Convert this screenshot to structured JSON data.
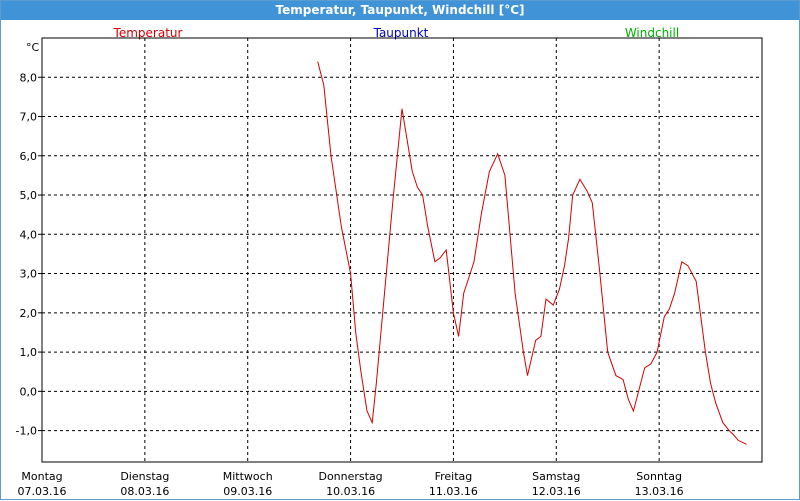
{
  "window": {
    "title": "Temperatur, Taupunkt, Windchill [°C]"
  },
  "chart_data": {
    "type": "line",
    "title": "Temperatur, Taupunkt, Windchill [°C]",
    "ylabel": "°C",
    "ylim": [
      -1.8,
      9.0
    ],
    "yticks": [
      -1.0,
      0.0,
      1.0,
      2.0,
      3.0,
      4.0,
      5.0,
      6.0,
      7.0,
      8.0
    ],
    "ytick_labels": [
      "-1,0",
      "0,0",
      "1,0",
      "2,0",
      "3,0",
      "4,0",
      "5,0",
      "6,0",
      "7,0",
      "8,0"
    ],
    "xlim": [
      0,
      7
    ],
    "xaxis_days": [
      {
        "day": "Montag",
        "date": "07.03.16"
      },
      {
        "day": "Dienstag",
        "date": "08.03.16"
      },
      {
        "day": "Mittwoch",
        "date": "09.03.16"
      },
      {
        "day": "Donnerstag",
        "date": "10.03.16"
      },
      {
        "day": "Freitag",
        "date": "11.03.16"
      },
      {
        "day": "Samstag",
        "date": "12.03.16"
      },
      {
        "day": "Sonntag",
        "date": "13.03.16"
      }
    ],
    "grid": true,
    "legend": [
      {
        "name": "Temperatur",
        "color": "#d40000"
      },
      {
        "name": "Taupunkt",
        "color": "#0000c0"
      },
      {
        "name": "Windchill",
        "color": "#00b000"
      }
    ],
    "series": [
      {
        "name": "Temperatur",
        "color": "#d40000",
        "x": [
          2.68,
          2.74,
          2.81,
          2.91,
          3.0,
          3.05,
          3.1,
          3.16,
          3.21,
          3.25,
          3.33,
          3.41,
          3.5,
          3.6,
          3.65,
          3.7,
          3.75,
          3.82,
          3.87,
          3.93,
          4.0,
          4.05,
          4.1,
          4.15,
          4.2,
          4.27,
          4.35,
          4.43,
          4.5,
          4.6,
          4.68,
          4.72,
          4.8,
          4.85,
          4.9,
          4.97,
          5.03,
          5.08,
          5.12,
          5.16,
          5.23,
          5.3,
          5.35,
          5.42,
          5.5,
          5.58,
          5.65,
          5.7,
          5.75,
          5.8,
          5.86,
          5.92,
          5.98,
          6.05,
          6.1,
          6.15,
          6.22,
          6.28,
          6.36,
          6.45,
          6.5,
          6.55,
          6.62,
          6.68,
          6.72,
          6.77,
          6.85
        ],
        "values": [
          8.4,
          7.8,
          6.0,
          4.2,
          3.0,
          1.5,
          0.5,
          -0.5,
          -0.8,
          0.2,
          2.5,
          4.8,
          7.2,
          5.6,
          5.2,
          5.0,
          4.2,
          3.3,
          3.4,
          3.6,
          2.0,
          1.4,
          2.5,
          2.9,
          3.3,
          4.5,
          5.6,
          6.05,
          5.5,
          2.5,
          1.0,
          0.4,
          1.3,
          1.4,
          2.35,
          2.2,
          2.6,
          3.2,
          3.9,
          5.0,
          5.4,
          5.1,
          4.8,
          3.1,
          1.0,
          0.4,
          0.3,
          -0.2,
          -0.5,
          0.0,
          0.6,
          0.7,
          1.0,
          1.9,
          2.1,
          2.5,
          3.3,
          3.2,
          2.8,
          1.0,
          0.2,
          -0.3,
          -0.8,
          -1.0,
          -1.1,
          -1.25,
          -1.35
        ]
      }
    ]
  }
}
